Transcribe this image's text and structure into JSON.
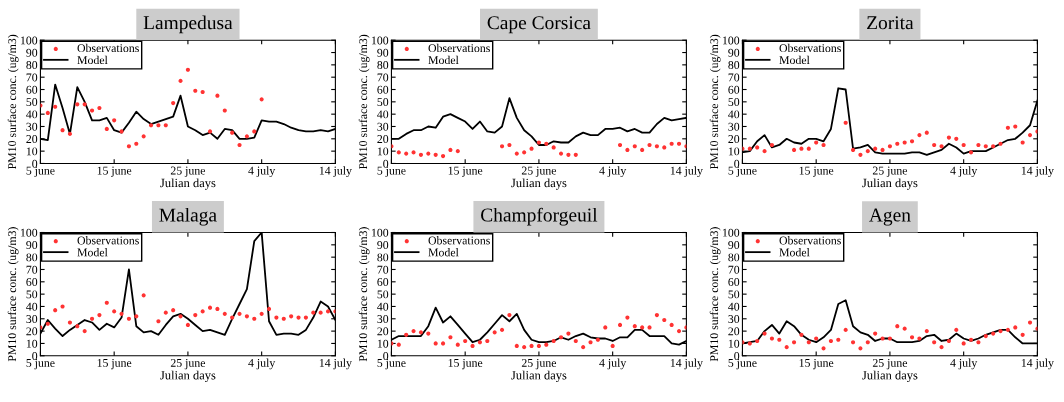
{
  "chart_data": [
    {
      "type": "line",
      "title": "Lampedusa",
      "xlabel": "Julian days",
      "ylabel": "PM10 surface conc. (ug/m3)",
      "legend": "top left",
      "ylim": [
        0,
        100
      ],
      "yticks": [
        0,
        10,
        20,
        30,
        40,
        50,
        60,
        70,
        80,
        90,
        100
      ],
      "categories": [
        "5 june",
        null,
        null,
        null,
        null,
        null,
        null,
        null,
        null,
        null,
        "15 june",
        null,
        null,
        null,
        null,
        null,
        null,
        null,
        null,
        null,
        "25 june",
        null,
        null,
        null,
        null,
        null,
        null,
        null,
        null,
        null,
        "4 july",
        null,
        null,
        null,
        null,
        null,
        null,
        null,
        null,
        null,
        "14 july"
      ],
      "series": [
        {
          "name": "Observations",
          "type": "scatter",
          "marker": "circle",
          "color": "#ff3333",
          "values": [
            47,
            41,
            46,
            27,
            24,
            48,
            48,
            43,
            45,
            28,
            35,
            26,
            14,
            16,
            22,
            31,
            31,
            31,
            49,
            67,
            76,
            59,
            58,
            26,
            55,
            43,
            25,
            15,
            22,
            26,
            52,
            null,
            null,
            null,
            null,
            null,
            null,
            null,
            null,
            null,
            null
          ]
        },
        {
          "name": "Model",
          "color": "#000000",
          "values": [
            20,
            19,
            64,
            45,
            24,
            62,
            50,
            35,
            35,
            37,
            27,
            25,
            33,
            42,
            36,
            32,
            34,
            36,
            38,
            55,
            30,
            27,
            23,
            25,
            20,
            28,
            27,
            20,
            20,
            21,
            35,
            34,
            34,
            32,
            29,
            27,
            26,
            26,
            27,
            26,
            28
          ]
        }
      ]
    },
    {
      "type": "line",
      "title": "Cape Corsica",
      "xlabel": "Julian days",
      "ylabel": "PM10 surface conc. (ug/m3)",
      "legend": "top left",
      "ylim": [
        0,
        100
      ],
      "yticks": [
        0,
        10,
        20,
        30,
        40,
        50,
        60,
        70,
        80,
        90,
        100
      ],
      "categories": [
        "5 june",
        null,
        null,
        null,
        null,
        null,
        null,
        null,
        null,
        null,
        "15 june",
        null,
        null,
        null,
        null,
        null,
        null,
        null,
        null,
        null,
        "25 june",
        null,
        null,
        null,
        null,
        null,
        null,
        null,
        null,
        null,
        "4 july",
        null,
        null,
        null,
        null,
        null,
        null,
        null,
        null,
        null,
        "14 july"
      ],
      "series": [
        {
          "name": "Observations",
          "type": "scatter",
          "marker": "circle",
          "color": "#ff3333",
          "values": [
            14,
            9,
            8,
            9,
            7,
            8,
            7,
            6,
            11,
            10,
            null,
            null,
            null,
            null,
            null,
            14,
            15,
            8,
            9,
            12,
            17,
            16,
            13,
            8,
            7,
            7,
            null,
            null,
            null,
            null,
            null,
            15,
            11,
            14,
            11,
            15,
            14,
            13,
            16,
            16,
            14
          ]
        },
        {
          "name": "Model",
          "color": "#000000",
          "values": [
            20,
            20,
            24,
            27,
            27,
            30,
            29,
            38,
            40,
            37,
            34,
            28,
            34,
            26,
            25,
            30,
            53,
            37,
            27,
            22,
            15,
            15,
            18,
            17,
            17,
            22,
            25,
            23,
            23,
            28,
            28,
            29,
            26,
            28,
            25,
            25,
            32,
            37,
            35,
            36,
            37
          ]
        }
      ]
    },
    {
      "type": "line",
      "title": "Zorita",
      "xlabel": "Julian days",
      "ylabel": "PM10 surface conc. (ug/m3)",
      "legend": "top left",
      "ylim": [
        0,
        100
      ],
      "yticks": [
        0,
        10,
        20,
        30,
        40,
        50,
        60,
        70,
        80,
        90,
        100
      ],
      "categories": [
        "5 june",
        null,
        null,
        null,
        null,
        null,
        null,
        null,
        null,
        null,
        "15 june",
        null,
        null,
        null,
        null,
        null,
        null,
        null,
        null,
        null,
        "25 june",
        null,
        null,
        null,
        null,
        null,
        null,
        null,
        null,
        null,
        "4 july",
        null,
        null,
        null,
        null,
        null,
        null,
        null,
        null,
        null,
        "14 july"
      ],
      "series": [
        {
          "name": "Observations",
          "type": "scatter",
          "marker": "circle",
          "color": "#ff3333",
          "values": [
            12,
            12,
            13,
            10,
            15,
            null,
            null,
            11,
            12,
            12,
            17,
            15,
            null,
            null,
            33,
            11,
            7,
            10,
            12,
            11,
            14,
            16,
            17,
            18,
            23,
            25,
            15,
            14,
            21,
            20,
            15,
            9,
            15,
            14,
            14,
            16,
            29,
            30,
            17,
            23,
            26
          ]
        },
        {
          "name": "Model",
          "color": "#000000",
          "values": [
            9,
            10,
            18,
            23,
            13,
            15,
            20,
            17,
            16,
            20,
            20,
            18,
            28,
            61,
            60,
            12,
            13,
            15,
            9,
            8,
            8,
            8,
            8,
            9,
            9,
            7,
            9,
            11,
            16,
            13,
            8,
            10,
            10,
            10,
            13,
            16,
            19,
            20,
            25,
            31,
            51
          ]
        }
      ]
    },
    {
      "type": "line",
      "title": "Malaga",
      "xlabel": "Julian days",
      "ylabel": "PM10 surface conc. (ug/m3)",
      "legend": "top left",
      "ylim": [
        0,
        100
      ],
      "yticks": [
        0,
        10,
        20,
        30,
        40,
        50,
        60,
        70,
        80,
        90,
        100
      ],
      "categories": [
        "5 june",
        null,
        null,
        null,
        null,
        null,
        null,
        null,
        null,
        null,
        "15 june",
        null,
        null,
        null,
        null,
        null,
        null,
        null,
        null,
        null,
        "25 june",
        null,
        null,
        null,
        null,
        null,
        null,
        null,
        null,
        null,
        "4 july",
        null,
        null,
        null,
        null,
        null,
        null,
        null,
        null,
        null,
        "14 july"
      ],
      "series": [
        {
          "name": "Observations",
          "type": "scatter",
          "marker": "circle",
          "color": "#ff3333",
          "values": [
            23,
            26,
            37,
            40,
            27,
            24,
            20,
            30,
            33,
            43,
            36,
            34,
            30,
            32,
            49,
            null,
            28,
            35,
            37,
            32,
            25,
            33,
            36,
            39,
            38,
            34,
            31,
            34,
            32,
            30,
            34,
            38,
            31,
            30,
            32,
            31,
            31,
            35,
            35,
            36,
            36
          ]
        },
        {
          "name": "Model",
          "color": "#000000",
          "values": [
            18,
            29,
            22,
            16,
            21,
            25,
            29,
            27,
            21,
            26,
            23,
            31,
            70,
            24,
            19,
            20,
            17,
            25,
            32,
            34,
            30,
            25,
            20,
            21,
            19,
            17,
            30,
            42,
            54,
            93,
            100,
            28,
            17,
            18,
            18,
            17,
            21,
            31,
            44,
            40,
            29
          ]
        }
      ]
    },
    {
      "type": "line",
      "title": "Champforgeuil",
      "xlabel": "Julian days",
      "ylabel": "PM10 surface conc. (ug/m3)",
      "legend": "top left",
      "ylim": [
        0,
        100
      ],
      "yticks": [
        0,
        10,
        20,
        30,
        40,
        50,
        60,
        70,
        80,
        90,
        100
      ],
      "categories": [
        "5 june",
        null,
        null,
        null,
        null,
        null,
        null,
        null,
        null,
        null,
        "15 june",
        null,
        null,
        null,
        null,
        null,
        null,
        null,
        null,
        null,
        "25 june",
        null,
        null,
        null,
        null,
        null,
        null,
        null,
        null,
        null,
        "4 july",
        null,
        null,
        null,
        null,
        null,
        null,
        null,
        null,
        null,
        "14 july"
      ],
      "series": [
        {
          "name": "Observations",
          "type": "scatter",
          "marker": "circle",
          "color": "#ff3333",
          "values": [
            10,
            9,
            17,
            20,
            19,
            18,
            10,
            10,
            15,
            9,
            12,
            8,
            11,
            12,
            19,
            21,
            33,
            8,
            7,
            8,
            8,
            9,
            12,
            15,
            18,
            12,
            7,
            11,
            13,
            23,
            8,
            25,
            31,
            24,
            23,
            23,
            33,
            29,
            25,
            20,
            23
          ]
        },
        {
          "name": "Model",
          "color": "#000000",
          "values": [
            13,
            16,
            16,
            16,
            16,
            24,
            39,
            27,
            32,
            25,
            18,
            11,
            13,
            19,
            26,
            33,
            28,
            34,
            21,
            13,
            11,
            11,
            12,
            15,
            13,
            16,
            18,
            15,
            14,
            14,
            12,
            15,
            15,
            21,
            21,
            16,
            16,
            16,
            10,
            9,
            12
          ]
        }
      ]
    },
    {
      "type": "line",
      "title": "Agen",
      "xlabel": "Julian days",
      "ylabel": "PM10 surface conc. (ug/m3)",
      "legend": "top left",
      "ylim": [
        0,
        100
      ],
      "yticks": [
        0,
        10,
        20,
        30,
        40,
        50,
        60,
        70,
        80,
        90,
        100
      ],
      "categories": [
        "5 june",
        null,
        null,
        null,
        null,
        null,
        null,
        null,
        null,
        null,
        "15 june",
        null,
        null,
        null,
        null,
        null,
        null,
        null,
        null,
        null,
        "25 june",
        null,
        null,
        null,
        null,
        null,
        null,
        null,
        null,
        null,
        "4 july",
        null,
        null,
        null,
        null,
        null,
        null,
        null,
        null,
        null,
        "14 july"
      ],
      "series": [
        {
          "name": "Observations",
          "type": "scatter",
          "marker": "circle",
          "color": "#ff3333",
          "values": [
            11,
            10,
            12,
            18,
            14,
            13,
            7,
            11,
            17,
            11,
            14,
            6,
            12,
            13,
            21,
            11,
            6,
            11,
            18,
            14,
            14,
            24,
            22,
            15,
            14,
            20,
            11,
            7,
            12,
            21,
            10,
            13,
            11,
            16,
            18,
            20,
            21,
            23,
            17,
            27,
            22
          ]
        },
        {
          "name": "Model",
          "color": "#000000",
          "values": [
            10,
            11,
            12,
            20,
            25,
            18,
            28,
            24,
            17,
            13,
            11,
            15,
            21,
            42,
            45,
            24,
            19,
            17,
            12,
            14,
            14,
            11,
            11,
            11,
            12,
            16,
            17,
            12,
            13,
            18,
            14,
            12,
            14,
            17,
            19,
            21,
            21,
            15,
            10,
            10,
            10
          ]
        }
      ]
    }
  ]
}
